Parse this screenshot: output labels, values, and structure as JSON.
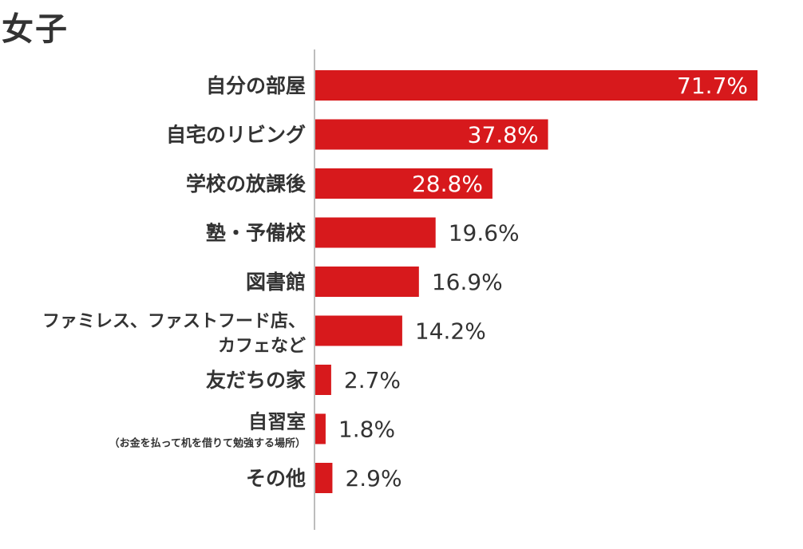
{
  "title": "女子",
  "colors": {
    "bar": "#d7191c",
    "text": "#333333",
    "axis": "#bdbdbd",
    "inner_label": "#ffffff"
  },
  "chart_data": {
    "type": "bar",
    "orientation": "horizontal",
    "unit": "%",
    "xlim": [
      0,
      71.7
    ],
    "grid": false,
    "legend": "none",
    "categories": [
      {
        "label": "自分の部屋"
      },
      {
        "label": "自宅のリビング"
      },
      {
        "label": "学校の放課後"
      },
      {
        "label": "塾・予備校"
      },
      {
        "label": "図書館"
      },
      {
        "label": "ファミレス、ファストフード店、",
        "label2": "カフェなど"
      },
      {
        "label": "友だちの家"
      },
      {
        "label": "自習室",
        "sublabel": "（お金を払って机を借りて勉強する場所）"
      },
      {
        "label": "その他"
      }
    ],
    "values": [
      71.7,
      37.8,
      28.8,
      19.6,
      16.9,
      14.2,
      2.7,
      1.8,
      2.9
    ],
    "value_labels": [
      "71.7%",
      "37.8%",
      "28.8%",
      "19.6%",
      "16.9%",
      "14.2%",
      "2.7%",
      "1.8%",
      "2.9%"
    ]
  }
}
